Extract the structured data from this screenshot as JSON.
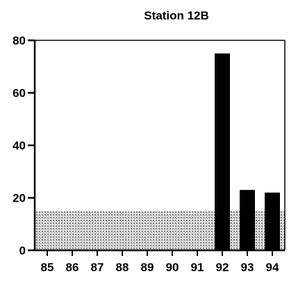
{
  "chart_data": {
    "type": "bar",
    "title": "Station 12B",
    "xlabel": "",
    "ylabel": "",
    "categories": [
      "85",
      "86",
      "87",
      "88",
      "89",
      "90",
      "91",
      "92",
      "93",
      "94"
    ],
    "values": [
      null,
      null,
      null,
      null,
      null,
      null,
      null,
      75,
      23,
      22
    ],
    "ylim": [
      0,
      80
    ],
    "yticks": [
      "0",
      "20",
      "40",
      "60",
      "80"
    ],
    "grid": false,
    "legend": "none",
    "background_band": {
      "from": 0,
      "to": 15
    },
    "colors": {
      "bars": "#000000",
      "band": "#bdbdbd",
      "axis": "#000000"
    }
  }
}
